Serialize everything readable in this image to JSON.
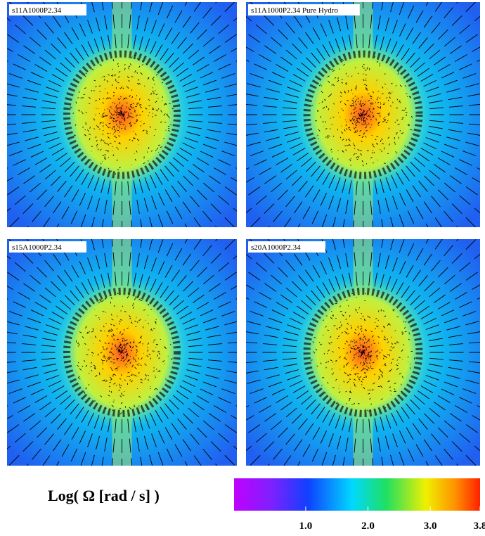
{
  "panels": [
    {
      "label": "s11A1000P2.34"
    },
    {
      "label": "s11A1000P2.34 Pure Hydro"
    },
    {
      "label": "s15A1000P2.34"
    },
    {
      "label": "s20A1000P2.34"
    }
  ],
  "colorbar": {
    "label": "Log( Ω [rad / s] )",
    "lim": [
      -0.15,
      3.8
    ],
    "ticks": [
      {
        "value": 1,
        "label": "1.0"
      },
      {
        "value": 2,
        "label": "2.0"
      },
      {
        "value": 3,
        "label": "3.0"
      },
      3.8
    ]
  }
}
